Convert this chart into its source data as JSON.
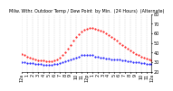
{
  "title": "Milw. Wthr. Outdoor Temp / Dew Point  by Min.  (24 Hours)  (Alternate)",
  "background_color": "#ffffff",
  "plot_bg_color": "#ffffff",
  "grid_color": "#cccccc",
  "temp_color": "#ff0000",
  "dew_color": "#0000ff",
  "ylim": [
    20,
    80
  ],
  "xlim": [
    0,
    1440
  ],
  "yticks": [
    20,
    30,
    40,
    50,
    60,
    70,
    80
  ],
  "xticks": [
    0,
    60,
    120,
    180,
    240,
    300,
    360,
    420,
    480,
    540,
    600,
    660,
    720,
    780,
    840,
    900,
    960,
    1020,
    1080,
    1140,
    1200,
    1260,
    1320,
    1380,
    1440
  ],
  "xtick_labels": [
    "12a",
    "1",
    "2",
    "3",
    "4",
    "5",
    "6",
    "7",
    "8",
    "9",
    "10",
    "11",
    "12p",
    "1",
    "2",
    "3",
    "4",
    "5",
    "6",
    "7",
    "8",
    "9",
    "10",
    "11",
    "12a"
  ],
  "temp_x": [
    0,
    30,
    60,
    90,
    120,
    150,
    180,
    210,
    240,
    270,
    300,
    330,
    360,
    390,
    420,
    450,
    480,
    510,
    540,
    570,
    600,
    630,
    660,
    690,
    720,
    750,
    780,
    810,
    840,
    870,
    900,
    930,
    960,
    990,
    1020,
    1050,
    1080,
    1110,
    1140,
    1170,
    1200,
    1230,
    1260,
    1290,
    1320,
    1350,
    1380,
    1410,
    1440
  ],
  "temp_y": [
    38,
    37,
    36,
    35,
    34,
    33,
    32,
    32,
    32,
    31,
    31,
    31,
    32,
    33,
    35,
    37,
    40,
    44,
    48,
    52,
    56,
    59,
    62,
    64,
    65,
    66,
    66,
    65,
    64,
    63,
    62,
    60,
    58,
    56,
    54,
    52,
    50,
    48,
    46,
    44,
    42,
    40,
    38,
    37,
    36,
    35,
    34,
    33,
    32
  ],
  "dew_x": [
    0,
    30,
    60,
    90,
    120,
    150,
    180,
    210,
    240,
    270,
    300,
    330,
    360,
    390,
    420,
    450,
    480,
    510,
    540,
    570,
    600,
    630,
    660,
    690,
    720,
    750,
    780,
    810,
    840,
    870,
    900,
    930,
    960,
    990,
    1020,
    1050,
    1080,
    1110,
    1140,
    1170,
    1200,
    1230,
    1260,
    1290,
    1320,
    1350,
    1380,
    1410,
    1440
  ],
  "dew_y": [
    30,
    30,
    29,
    29,
    29,
    28,
    28,
    28,
    27,
    27,
    27,
    27,
    28,
    28,
    29,
    30,
    31,
    32,
    33,
    34,
    35,
    36,
    37,
    37,
    37,
    37,
    37,
    36,
    36,
    35,
    35,
    34,
    34,
    33,
    33,
    33,
    33,
    32,
    32,
    31,
    31,
    30,
    30,
    30,
    29,
    29,
    28,
    28,
    28
  ],
  "marker_size": 1.0,
  "tick_fontsize": 3.5,
  "title_fontsize": 3.5
}
